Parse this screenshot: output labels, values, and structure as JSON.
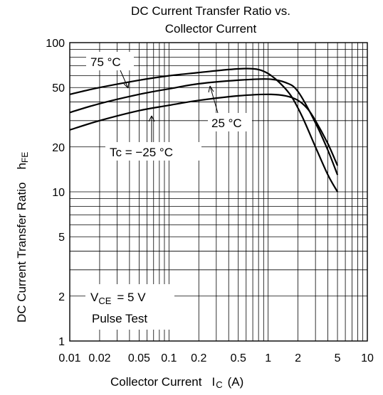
{
  "chart_data": {
    "type": "line",
    "title_lines": [
      "DC Current Transfer Ratio vs.",
      "Collector Current"
    ],
    "xlabel": {
      "main": "Collector Current",
      "symbol": "I",
      "subscript": "C",
      "unit": "(A)"
    },
    "ylabel": {
      "main": "DC Current Transfer Ratio",
      "symbol": "h",
      "subscript": "FE"
    },
    "x_scale": "log",
    "y_scale": "log",
    "xlim": [
      0.01,
      10
    ],
    "ylim": [
      1,
      100
    ],
    "grid": true,
    "x_ticks": [
      {
        "v": 0.01,
        "label": "0.01"
      },
      {
        "v": 0.02,
        "label": "0.02"
      },
      {
        "v": 0.05,
        "label": "0.05"
      },
      {
        "v": 0.1,
        "label": "0.1"
      },
      {
        "v": 0.2,
        "label": "0.2"
      },
      {
        "v": 0.5,
        "label": "0.5"
      },
      {
        "v": 1,
        "label": "1"
      },
      {
        "v": 2,
        "label": "2"
      },
      {
        "v": 5,
        "label": "5"
      },
      {
        "v": 10,
        "label": "10"
      }
    ],
    "y_ticks": [
      {
        "v": 1,
        "label": "1"
      },
      {
        "v": 2,
        "label": "2"
      },
      {
        "v": 5,
        "label": "5"
      },
      {
        "v": 10,
        "label": "10"
      },
      {
        "v": 20,
        "label": "20"
      },
      {
        "v": 50,
        "label": "50"
      },
      {
        "v": 100,
        "label": "100"
      }
    ],
    "x_grid": [
      0.01,
      0.02,
      0.03,
      0.04,
      0.05,
      0.06,
      0.07,
      0.08,
      0.09,
      0.1,
      0.2,
      0.3,
      0.4,
      0.5,
      0.6,
      0.7,
      0.8,
      0.9,
      1,
      2,
      3,
      4,
      5,
      6,
      7,
      8,
      9,
      10
    ],
    "y_grid": [
      1,
      2,
      3,
      4,
      5,
      6,
      7,
      8,
      9,
      10,
      20,
      30,
      40,
      50,
      60,
      70,
      80,
      90,
      100
    ],
    "series": [
      {
        "name": "75 °C",
        "x": [
          0.01,
          0.02,
          0.05,
          0.1,
          0.2,
          0.4,
          0.6,
          0.8,
          1.0,
          1.3,
          1.7,
          2.2,
          3.0,
          4.0,
          5.0
        ],
        "y": [
          45,
          50,
          56,
          60,
          63,
          66,
          67,
          66,
          62,
          54,
          44,
          32,
          20,
          13,
          10
        ]
      },
      {
        "name": "25 °C",
        "x": [
          0.01,
          0.02,
          0.05,
          0.1,
          0.2,
          0.5,
          1.0,
          1.5,
          2.0,
          3.0,
          4.0,
          5.0
        ],
        "y": [
          34,
          39,
          45,
          49,
          53,
          56,
          57,
          54,
          47,
          29,
          19,
          13
        ]
      },
      {
        "name": "Tc = −25 °C",
        "x": [
          0.01,
          0.02,
          0.05,
          0.1,
          0.2,
          0.5,
          1.0,
          1.5,
          2.0,
          2.5,
          3.0,
          4.0,
          5.0
        ],
        "y": [
          26,
          30,
          35,
          38,
          41,
          44,
          45,
          44,
          41,
          36,
          30,
          21,
          15
        ]
      }
    ],
    "annotations": {
      "label_75": "75 °C",
      "label_25": "25 °C",
      "label_m25": "Tc = −25 °C",
      "vce_sym": "V",
      "vce_sub": "CE",
      "vce_val": "= 5 V",
      "pulse": "Pulse Test"
    }
  }
}
